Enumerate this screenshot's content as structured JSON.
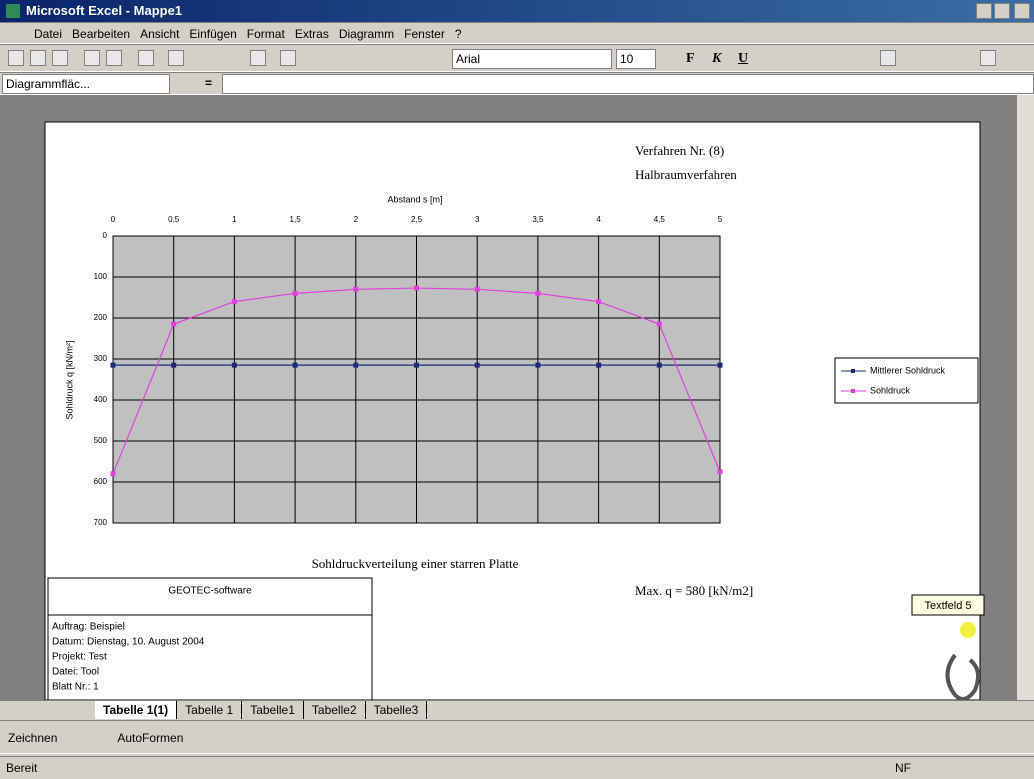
{
  "window": {
    "title": "Microsoft Excel - Mappe1"
  },
  "menu": [
    "Datei",
    "Bearbeiten",
    "Ansicht",
    "Einfügen",
    "Format",
    "Extras",
    "Diagramm",
    "Fenster",
    "?"
  ],
  "toolbar": {
    "font": "Arial",
    "size": "10",
    "format_buttons": [
      "F",
      "K",
      "U"
    ]
  },
  "formula_bar": {
    "name_box": "Diagrammfläc...",
    "equals": "="
  },
  "chart_data": {
    "type": "line",
    "title": "Sohldruckverteilung einer starren Platte",
    "annotations": [
      "Verfahren Nr. (8)",
      "Halbraumverfahren",
      "Max. q = 580 [kN/m2]"
    ],
    "x_label": "Abstand s [m]",
    "y_label": "Sohldruck q [kN/m²]",
    "x": [
      0,
      0.5,
      1,
      1.5,
      2,
      2.5,
      3,
      3.5,
      4,
      4.5,
      5
    ],
    "series": [
      {
        "name": "Mittlerer Sohldruck",
        "color": "#1c2a7a",
        "values": [
          315,
          315,
          315,
          315,
          315,
          315,
          315,
          315,
          315,
          315,
          315
        ]
      },
      {
        "name": "Sohldruck",
        "color": "#e040e0",
        "values": [
          580,
          215,
          160,
          140,
          130,
          127,
          130,
          140,
          160,
          215,
          575
        ]
      }
    ],
    "xlim": [
      0,
      5
    ],
    "xticks": [
      0,
      {
        "value": 0.5,
        "label": "0,5"
      },
      1,
      {
        "value": 1.5,
        "label": "1,5"
      },
      2,
      {
        "value": 2.5,
        "label": "2,5"
      },
      3,
      {
        "value": 3.5,
        "label": "3,5"
      },
      4,
      {
        "value": 4.5,
        "label": "4,5"
      },
      5
    ],
    "ylim": [
      0,
      700
    ],
    "y_reversed": true,
    "yticks": [
      0,
      100,
      200,
      300,
      400,
      500,
      600,
      700
    ],
    "grid": true,
    "plot_color": "#c0c0c0",
    "legend": "right"
  },
  "info_box": {
    "title": "GEOTEC-software",
    "lines": [
      "Auftrag: Beispiel",
      "Datum: Dienstag, 10. August 2004",
      "Projekt: Test",
      "Datei: Tool",
      "Blatt Nr.: 1"
    ]
  },
  "tooltip": "Textfeld 5",
  "sheet_tabs": [
    "Tabelle 1(1)",
    "Tabelle 1",
    "Tabelle1",
    "Tabelle2",
    "Tabelle3"
  ],
  "drawing_toolbar": [
    "Zeichnen",
    "AutoFormen"
  ],
  "status_bar": {
    "state": "Bereit",
    "mode": "NF"
  }
}
